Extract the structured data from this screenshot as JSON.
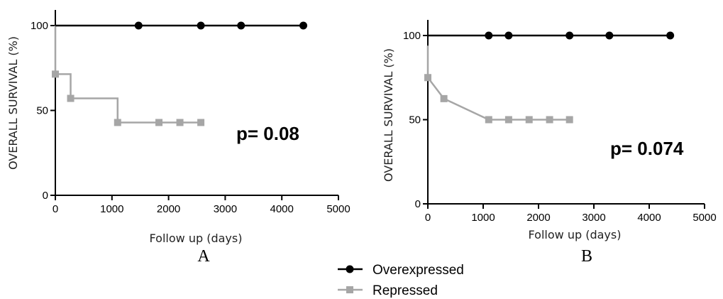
{
  "chart_data": [
    {
      "type": "line",
      "panel": "A",
      "xlabel": "Follow up (days)",
      "ylabel": "OVERALL SURVIVAL (%)",
      "xlim": [
        0,
        5000
      ],
      "ylim": [
        0,
        100
      ],
      "xticks": [
        0,
        1000,
        2000,
        3000,
        4000,
        5000
      ],
      "yticks": [
        0,
        50,
        100
      ],
      "annotation": "p= 0.08",
      "series": [
        {
          "name": "Overexpressed",
          "color": "#000000",
          "marker": "circle",
          "step": [
            [
              0,
              100
            ],
            [
              4400,
              100
            ]
          ],
          "points": [
            [
              1470,
              100
            ],
            [
              2570,
              100
            ],
            [
              3280,
              100
            ],
            [
              4380,
              100
            ]
          ]
        },
        {
          "name": "Repressed",
          "color": "#a6a6a6",
          "marker": "square",
          "step": [
            [
              0,
              100
            ],
            [
              0,
              71.4
            ],
            [
              270,
              71.4
            ],
            [
              270,
              57.1
            ],
            [
              1100,
              57.1
            ],
            [
              1100,
              42.9
            ],
            [
              2570,
              42.9
            ]
          ],
          "points": [
            [
              0,
              71.4
            ],
            [
              270,
              57.1
            ],
            [
              1100,
              42.9
            ],
            [
              1830,
              42.9
            ],
            [
              2200,
              42.9
            ],
            [
              2570,
              42.9
            ]
          ]
        }
      ]
    },
    {
      "type": "line",
      "panel": "B",
      "xlabel": "Follow up (days)",
      "ylabel": "OVERALL SURVIVAL (%)",
      "xlim": [
        0,
        5000
      ],
      "ylim": [
        0,
        100
      ],
      "xticks": [
        0,
        1000,
        2000,
        3000,
        4000,
        5000
      ],
      "yticks": [
        0,
        50,
        100
      ],
      "annotation": "p= 0.074",
      "series": [
        {
          "name": "Overexpressed",
          "color": "#000000",
          "marker": "circle",
          "step": [
            [
              0,
              100
            ],
            [
              4400,
              100
            ]
          ],
          "points": [
            [
              1100,
              100
            ],
            [
              1460,
              100
            ],
            [
              2560,
              100
            ],
            [
              3280,
              100
            ],
            [
              4380,
              100
            ]
          ]
        },
        {
          "name": "Repressed",
          "color": "#a6a6a6",
          "marker": "square",
          "step": [
            [
              0,
              94
            ],
            [
              0,
              75
            ],
            [
              290,
              62.5
            ],
            [
              1100,
              50
            ],
            [
              2560,
              50
            ]
          ],
          "points": [
            [
              0,
              75
            ],
            [
              290,
              62.5
            ],
            [
              1100,
              50
            ],
            [
              1460,
              50
            ],
            [
              1830,
              50
            ],
            [
              2200,
              50
            ],
            [
              2560,
              50
            ]
          ]
        }
      ]
    }
  ],
  "legend": {
    "items": [
      {
        "label": "Overexpressed",
        "color": "#000000",
        "marker": "circle"
      },
      {
        "label": "Repressed",
        "color": "#a6a6a6",
        "marker": "square"
      }
    ]
  }
}
